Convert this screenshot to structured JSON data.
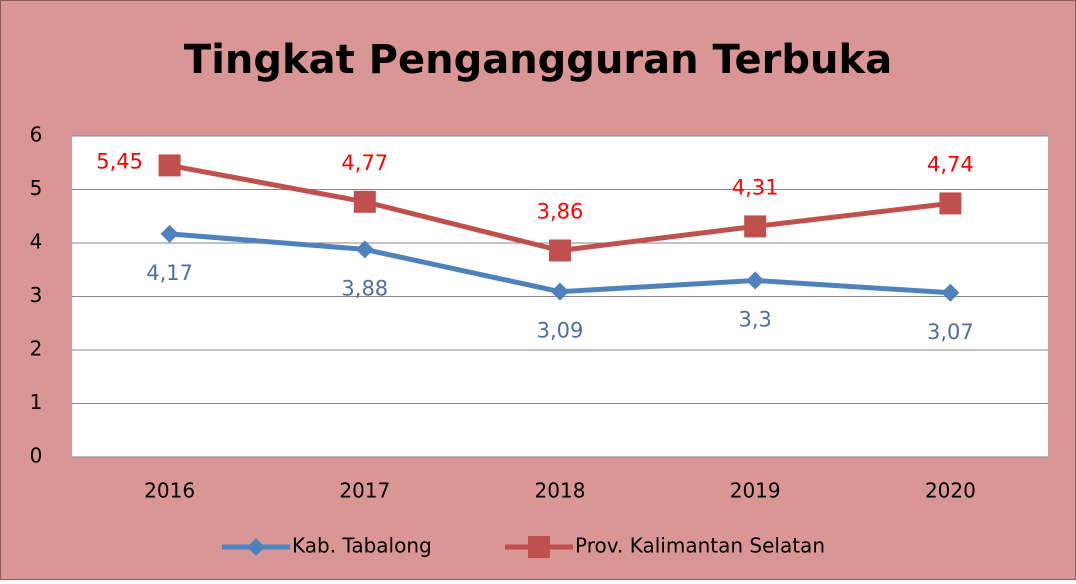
{
  "chart_data": {
    "type": "line",
    "title": "Tingkat Pengangguran Terbuka",
    "categories": [
      "2016",
      "2017",
      "2018",
      "2019",
      "2020"
    ],
    "series": [
      {
        "name": "Kab. Tabalong",
        "color": "#4f81bd",
        "label_color": "#4f6f9f",
        "values": [
          4.17,
          3.88,
          3.09,
          3.3,
          3.07
        ],
        "value_labels": [
          "4,17",
          "3,88",
          "3,09",
          "3,3",
          "3,07"
        ],
        "marker": "diamond"
      },
      {
        "name": "Prov. Kalimantan Selatan",
        "color": "#c0504d",
        "label_color": "#ff0000",
        "values": [
          5.45,
          4.77,
          3.86,
          4.31,
          4.74
        ],
        "value_labels": [
          "5,45",
          "4,77",
          "3,86",
          "4,31",
          "4,74"
        ],
        "marker": "square"
      }
    ],
    "ylim": [
      0,
      6
    ],
    "yticks": [
      0,
      1,
      2,
      3,
      4,
      5,
      6
    ],
    "grid": true,
    "legend": "bottom"
  }
}
